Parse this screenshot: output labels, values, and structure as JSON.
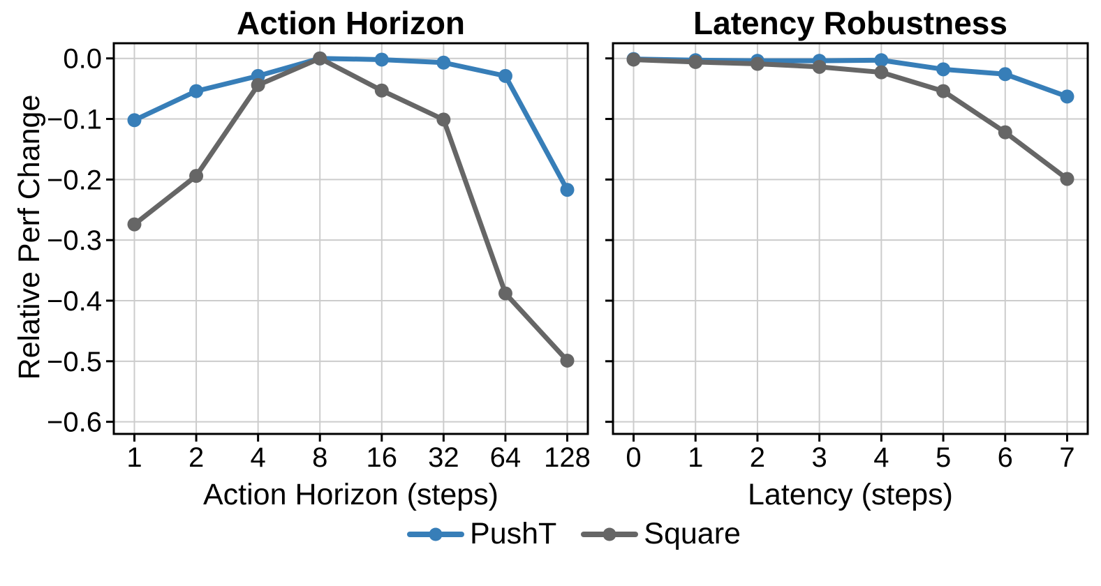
{
  "figure": {
    "background": "#ffffff",
    "text_color": "#000000",
    "grid_color": "#cccccc",
    "spine_color": "#000000",
    "ylabel": "Relative Perf Change",
    "legend": [
      {
        "label": "PushT",
        "color": "#377eb8"
      },
      {
        "label": "Square",
        "color": "#666666"
      }
    ]
  },
  "chart_data": [
    {
      "type": "line",
      "title": "Action Horizon",
      "xlabel": "Action Horizon (steps)",
      "ylabel": "Relative Perf Change",
      "x_ticklabels": [
        "1",
        "2",
        "4",
        "8",
        "16",
        "32",
        "64",
        "128"
      ],
      "y_ticks": [
        0.0,
        -0.1,
        -0.2,
        -0.3,
        -0.4,
        -0.5,
        -0.6
      ],
      "y_ticklabels": [
        "0.0",
        "−0.1",
        "−0.2",
        "−0.3",
        "−0.4",
        "−0.5",
        "−0.6"
      ],
      "ylim": [
        -0.62,
        0.025
      ],
      "grid": true,
      "legend_position": "bottom-center",
      "series": [
        {
          "name": "PushT",
          "color": "#377eb8",
          "values": [
            -0.102,
            -0.054,
            -0.029,
            0.0,
            -0.002,
            -0.007,
            -0.029,
            -0.217
          ]
        },
        {
          "name": "Square",
          "color": "#666666",
          "values": [
            -0.274,
            -0.194,
            -0.044,
            0.0,
            -0.053,
            -0.101,
            -0.388,
            -0.499
          ]
        }
      ]
    },
    {
      "type": "line",
      "title": "Latency Robustness",
      "xlabel": "Latency (steps)",
      "x_ticklabels": [
        "0",
        "1",
        "2",
        "3",
        "4",
        "5",
        "6",
        "7"
      ],
      "y_ticks": [
        0.0,
        -0.1,
        -0.2,
        -0.3,
        -0.4,
        -0.5,
        -0.6
      ],
      "y_ticklabels": [],
      "ylim": [
        -0.62,
        0.025
      ],
      "grid": true,
      "series": [
        {
          "name": "PushT",
          "color": "#377eb8",
          "values": [
            -0.001,
            -0.003,
            -0.004,
            -0.004,
            -0.003,
            -0.018,
            -0.026,
            -0.063
          ]
        },
        {
          "name": "Square",
          "color": "#666666",
          "values": [
            -0.002,
            -0.006,
            -0.009,
            -0.014,
            -0.023,
            -0.054,
            -0.122,
            -0.199
          ]
        }
      ]
    }
  ]
}
